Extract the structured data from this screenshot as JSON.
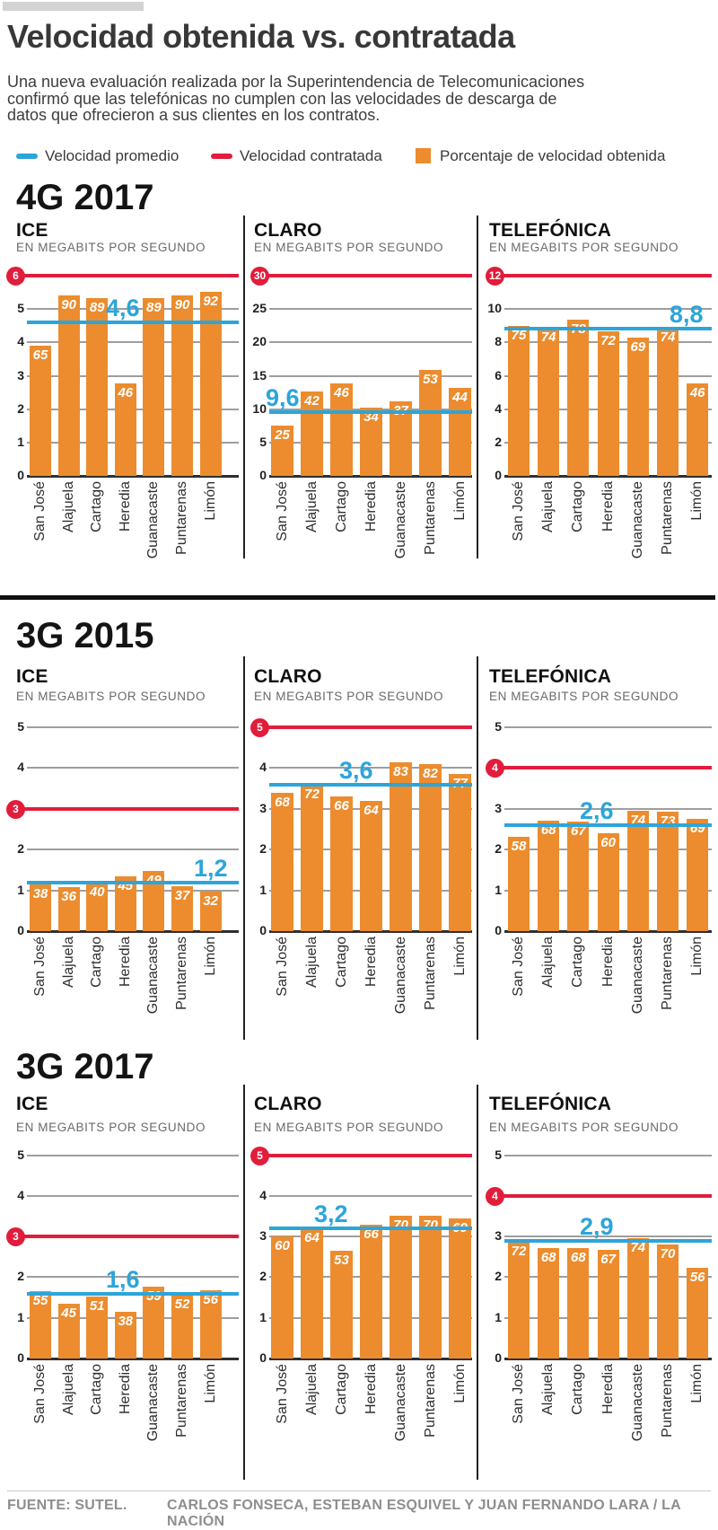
{
  "header": {
    "title": "Velocidad obtenida vs. contratada",
    "subtitle_lines": [
      "Una nueva evaluación realizada por la Superintendencia de Telecomunicaciones",
      "confirmó que las telefónicas no cumplen con las velocidades de descarga de",
      "datos que ofrecieron a sus clientes en los contratos."
    ],
    "legend": [
      {
        "icon": "average-line-swatch",
        "color": "#2ca5da",
        "label": "Velocidad promedio"
      },
      {
        "icon": "contracted-line-swatch",
        "color": "#e11d3c",
        "label": "Velocidad contratada"
      },
      {
        "icon": "obtained-bar-swatch",
        "color": "#ec8c2e",
        "label": "Porcentaje de velocidad obtenida"
      }
    ]
  },
  "chart_data": {
    "type": "bar",
    "categories": [
      "San José",
      "Alajuela",
      "Cartago",
      "Heredia",
      "Guanacaste",
      "Puntarenas",
      "Limón"
    ],
    "notes": "Orange bars = percentage of contracted speed obtained per province; bar height in Mbps = pct/100 × contracted. Blue line = average speed (Mbps), red line = contracted speed (Mbps).",
    "sections": [
      {
        "title": "4G 2017",
        "charts": [
          {
            "provider": "ICE",
            "unit_label": "EN MEGABITS POR SEGUNDO",
            "contracted": 6,
            "average": 4.6,
            "average_label": "4,6",
            "yticks": [
              0,
              1,
              2,
              3,
              4,
              5
            ],
            "percentages": [
              65,
              90,
              89,
              46,
              89,
              90,
              92
            ]
          },
          {
            "provider": "CLARO",
            "unit_label": "EN MEGABITS POR SEGUNDO",
            "contracted": 30,
            "average": 9.6,
            "average_label": "9,6",
            "yticks": [
              0,
              5,
              10,
              15,
              20,
              25
            ],
            "percentages": [
              25,
              42,
              46,
              34,
              37,
              53,
              44
            ]
          },
          {
            "provider": "TELEFÓNICA",
            "unit_label": "EN MEGABITS POR SEGUNDO",
            "contracted": 12,
            "average": 8.8,
            "average_label": "8,8",
            "yticks": [
              0,
              2,
              4,
              6,
              8,
              10
            ],
            "percentages": [
              75,
              74,
              78,
              72,
              69,
              74,
              46
            ]
          }
        ]
      },
      {
        "title": "3G 2015",
        "charts": [
          {
            "provider": "ICE",
            "unit_label": "EN MEGABITS POR SEGUNDO",
            "contracted": 3,
            "average": 1.2,
            "average_label": "1,2",
            "yticks": [
              0,
              1,
              2,
              4,
              5
            ],
            "percentages": [
              38,
              36,
              40,
              45,
              49,
              37,
              32
            ]
          },
          {
            "provider": "CLARO",
            "unit_label": "EN MEGABITS POR SEGUNDO",
            "contracted": 5,
            "average": 3.6,
            "average_label": "3,6",
            "yticks": [
              0,
              1,
              2,
              3,
              4
            ],
            "percentages": [
              68,
              72,
              66,
              64,
              83,
              82,
              77
            ]
          },
          {
            "provider": "TELEFÓNICA",
            "unit_label": "EN MEGABITS POR SEGUNDO",
            "contracted": 4,
            "average": 2.6,
            "average_label": "2,6",
            "yticks": [
              0,
              1,
              2,
              3,
              5
            ],
            "percentages": [
              58,
              68,
              67,
              60,
              74,
              73,
              69
            ]
          }
        ]
      },
      {
        "title": "3G 2017",
        "charts": [
          {
            "provider": "ICE",
            "unit_label": "EN MEGABITS POR SEGUNDO",
            "contracted": 3,
            "average": 1.6,
            "average_label": "1,6",
            "yticks": [
              0,
              1,
              2,
              4,
              5
            ],
            "percentages": [
              55,
              45,
              51,
              38,
              59,
              52,
              56
            ]
          },
          {
            "provider": "CLARO",
            "unit_label": "EN MEGABITS POR SEGUNDO",
            "contracted": 5,
            "average": 3.2,
            "average_label": "3,2",
            "yticks": [
              0,
              1,
              2,
              3,
              4
            ],
            "percentages": [
              60,
              64,
              53,
              66,
              70,
              70,
              69
            ]
          },
          {
            "provider": "TELEFÓNICA",
            "unit_label": "EN MEGABITS POR SEGUNDO",
            "contracted": 4,
            "average": 2.9,
            "average_label": "2,9",
            "yticks": [
              0,
              1,
              2,
              3,
              5
            ],
            "percentages": [
              72,
              68,
              68,
              67,
              74,
              70,
              56
            ]
          }
        ]
      }
    ]
  },
  "footer": {
    "source": "FUENTE: SUTEL.",
    "credits": "CARLOS FONSECA, ESTEBAN ESQUIVEL Y JUAN FERNANDO LARA / LA NACIÓN"
  }
}
